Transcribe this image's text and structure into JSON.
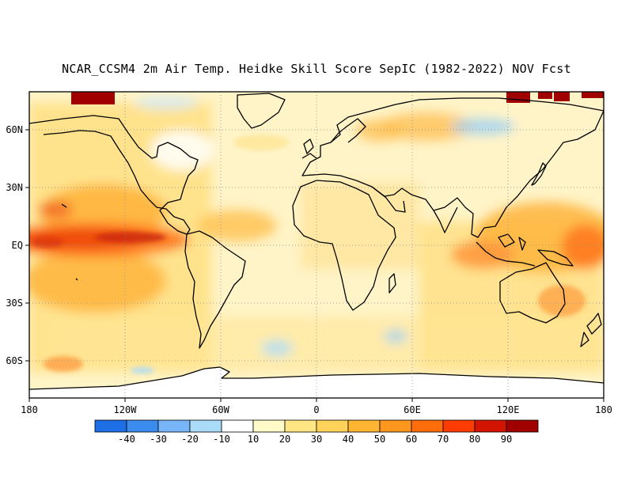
{
  "title": "NCAR_CCSM4 2m Air Temp. Heidke Skill Score SepIC (1982-2022) NOV Fcst",
  "lat_labels": [
    "60N",
    "30N",
    "EQ",
    "30S",
    "60S"
  ],
  "lon_labels": [
    "180",
    "120W",
    "60W",
    "0",
    "60E",
    "120E",
    "180"
  ],
  "colorbar": {
    "labels": [
      "-40",
      "-30",
      "-20",
      "-10",
      "10",
      "20",
      "30",
      "40",
      "50",
      "60",
      "70",
      "80",
      "90"
    ],
    "colors": [
      "#1e6ee6",
      "#3c8cf0",
      "#78b4f8",
      "#aadcfa",
      "#ffffff",
      "#fffac8",
      "#ffe682",
      "#ffd25a",
      "#ffb432",
      "#ff961e",
      "#ff6e0a",
      "#ff3c00",
      "#d21400",
      "#a00000"
    ]
  }
}
